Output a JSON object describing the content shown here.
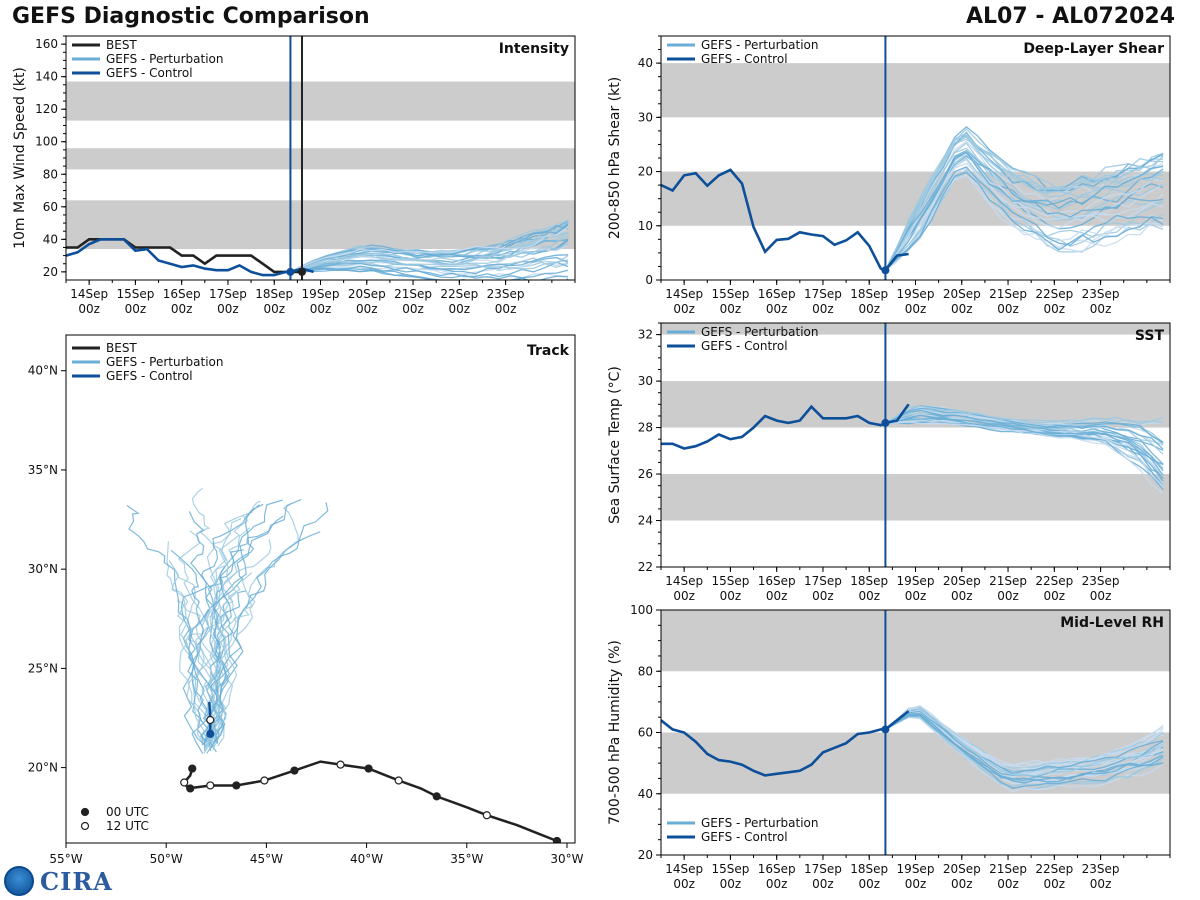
{
  "header": {
    "title": "GEFS Diagnostic Comparison",
    "storm_id": "AL07 - AL072024"
  },
  "logos": {
    "noaa_icon": "noaa-logo-icon",
    "cira_text": "CIRA"
  },
  "colors": {
    "best": "#222222",
    "perturbation": "#6aaed6",
    "control": "#0d4f99",
    "band": "#cccccc"
  },
  "time_axis": {
    "tick_labels": [
      [
        "14Sep",
        "00z"
      ],
      [
        "15Sep",
        "00z"
      ],
      [
        "16Sep",
        "00z"
      ],
      [
        "17Sep",
        "00z"
      ],
      [
        "18Sep",
        "00z"
      ],
      [
        "19Sep",
        "00z"
      ],
      [
        "20Sep",
        "00z"
      ],
      [
        "21Sep",
        "00z"
      ],
      [
        "22Sep",
        "00z"
      ],
      [
        "23Sep",
        "00z"
      ]
    ],
    "xmin": -0.5,
    "xmax": 10.5,
    "initial_time": 4.35
  },
  "chart_data": [
    {
      "id": "intensity",
      "type": "line",
      "title": "Intensity",
      "ylabel": "10m Max Wind Speed (kt)",
      "ylim": [
        15,
        165
      ],
      "yticks": [
        20,
        40,
        60,
        80,
        100,
        120,
        140,
        160
      ],
      "bands": [
        [
          34,
          64
        ],
        [
          83,
          96
        ],
        [
          113,
          137
        ]
      ],
      "best_marker_time": 4.6,
      "legend": [
        "BEST",
        "GEFS - Perturbation",
        "GEFS - Control"
      ],
      "series": [
        {
          "name": "BEST",
          "x": [
            -0.5,
            -0.25,
            0,
            0.25,
            0.5,
            0.75,
            1,
            1.25,
            1.5,
            1.75,
            2,
            2.25,
            2.5,
            2.75,
            3,
            3.25,
            3.5,
            3.75,
            4,
            4.25,
            4.5,
            4.6
          ],
          "values": [
            35,
            35,
            40,
            40,
            40,
            40,
            35,
            35,
            35,
            35,
            30,
            30,
            25,
            30,
            30,
            30,
            30,
            25,
            20,
            20,
            20,
            20
          ]
        },
        {
          "name": "GEFS - Control",
          "x": [
            -0.5,
            -0.25,
            0,
            0.25,
            0.5,
            0.75,
            1,
            1.25,
            1.5,
            1.75,
            2,
            2.25,
            2.5,
            2.75,
            3,
            3.25,
            3.5,
            3.75,
            4,
            4.25,
            4.35,
            4.6,
            4.85
          ],
          "values": [
            30,
            32,
            37,
            40,
            40,
            40,
            33,
            34,
            27,
            25,
            23,
            24,
            22,
            21,
            21,
            24,
            20,
            18,
            18,
            20,
            20,
            22,
            20
          ]
        }
      ],
      "ensemble": {
        "name": "GEFS - Perturbation",
        "start": 4.35,
        "start_value": 20,
        "mean": [
          [
            4.35,
            20
          ],
          [
            5,
            25
          ],
          [
            6,
            28
          ],
          [
            7,
            25
          ],
          [
            8,
            23
          ],
          [
            9,
            25
          ],
          [
            10,
            30
          ],
          [
            10.5,
            33
          ]
        ],
        "spread": [
          [
            4.35,
            0
          ],
          [
            5,
            4
          ],
          [
            6,
            7
          ],
          [
            7,
            7
          ],
          [
            8,
            9
          ],
          [
            9,
            12
          ],
          [
            10,
            16
          ],
          [
            10.5,
            18
          ]
        ],
        "members": 30
      }
    },
    {
      "id": "shear",
      "type": "line",
      "title": "Deep-Layer Shear",
      "ylabel": "200-850 hPa Shear (kt)",
      "ylim": [
        0,
        45
      ],
      "yticks": [
        0,
        10,
        20,
        30,
        40
      ],
      "bands": [
        [
          10,
          20
        ],
        [
          30,
          40
        ]
      ],
      "legend": [
        "GEFS - Perturbation",
        "GEFS - Control"
      ],
      "series": [
        {
          "name": "GEFS - Control",
          "x": [
            -0.5,
            -0.25,
            0,
            0.25,
            0.5,
            0.75,
            1,
            1.25,
            1.5,
            1.75,
            2,
            2.25,
            2.5,
            2.75,
            3,
            3.25,
            3.5,
            3.75,
            4,
            4.25,
            4.35,
            4.6,
            4.85
          ],
          "values": [
            17.5,
            16.5,
            19.3,
            19.7,
            17.4,
            19.3,
            20.3,
            17.8,
            9.8,
            5.2,
            7.4,
            7.6,
            8.8,
            8.4,
            8.1,
            6.5,
            7.3,
            8.8,
            6.3,
            2.1,
            1.8,
            4.5,
            4.8
          ]
        }
      ],
      "ensemble": {
        "name": "GEFS - Perturbation",
        "start": 4.35,
        "start_value": 1.8,
        "mean": [
          [
            4.35,
            1.8
          ],
          [
            5,
            10
          ],
          [
            6,
            25
          ],
          [
            7,
            16
          ],
          [
            8,
            12
          ],
          [
            9,
            14
          ],
          [
            10,
            17
          ],
          [
            10.5,
            18
          ]
        ],
        "spread": [
          [
            4.35,
            0
          ],
          [
            5,
            4
          ],
          [
            6,
            4
          ],
          [
            7,
            5
          ],
          [
            8,
            6
          ],
          [
            9,
            7
          ],
          [
            10,
            7
          ],
          [
            10.5,
            8
          ]
        ],
        "members": 30
      }
    },
    {
      "id": "sst",
      "type": "line",
      "title": "SST",
      "ylabel": "Sea Surface Temp (°C)",
      "ylim": [
        22,
        32.5
      ],
      "yticks": [
        22,
        24,
        26,
        28,
        30,
        32
      ],
      "bands": [
        [
          24,
          26
        ],
        [
          28,
          30
        ],
        [
          32,
          34
        ]
      ],
      "legend": [
        "GEFS - Perturbation",
        "GEFS - Control"
      ],
      "series": [
        {
          "name": "GEFS - Control",
          "x": [
            -0.5,
            -0.25,
            0,
            0.25,
            0.5,
            0.75,
            1,
            1.25,
            1.5,
            1.75,
            2,
            2.25,
            2.5,
            2.75,
            3,
            3.25,
            3.5,
            3.75,
            4,
            4.25,
            4.35,
            4.6,
            4.85
          ],
          "values": [
            27.3,
            27.3,
            27.1,
            27.2,
            27.4,
            27.7,
            27.5,
            27.6,
            28,
            28.5,
            28.3,
            28.2,
            28.3,
            28.9,
            28.4,
            28.4,
            28.4,
            28.5,
            28.2,
            28.1,
            28.2,
            28.3,
            29
          ]
        }
      ],
      "ensemble": {
        "name": "GEFS - Perturbation",
        "start": 4.35,
        "start_value": 28.2,
        "mean": [
          [
            4.35,
            28.2
          ],
          [
            5,
            28.6
          ],
          [
            6,
            28.4
          ],
          [
            7,
            28.1
          ],
          [
            8,
            27.9
          ],
          [
            9,
            27.9
          ],
          [
            9.8,
            27.4
          ],
          [
            10.5,
            26.4
          ]
        ],
        "spread": [
          [
            4.35,
            0
          ],
          [
            5,
            0.4
          ],
          [
            6,
            0.3
          ],
          [
            7,
            0.3
          ],
          [
            8,
            0.3
          ],
          [
            9,
            0.5
          ],
          [
            9.8,
            0.9
          ],
          [
            10.5,
            1.6
          ]
        ],
        "members": 30
      }
    },
    {
      "id": "rh",
      "type": "line",
      "title": "Mid-Level RH",
      "ylabel": "700-500 hPa Humidity (%)",
      "ylim": [
        20,
        100
      ],
      "yticks": [
        20,
        40,
        60,
        80,
        100
      ],
      "bands": [
        [
          40,
          60
        ],
        [
          80,
          100
        ]
      ],
      "legend": [
        "GEFS - Perturbation",
        "GEFS - Control"
      ],
      "series": [
        {
          "name": "GEFS - Control",
          "x": [
            -0.5,
            -0.25,
            0,
            0.25,
            0.5,
            0.75,
            1,
            1.25,
            1.5,
            1.75,
            2,
            2.25,
            2.5,
            2.75,
            3,
            3.25,
            3.5,
            3.75,
            4,
            4.25,
            4.35,
            4.6,
            4.85
          ],
          "values": [
            64,
            61,
            60,
            57,
            53,
            51,
            50.5,
            49.5,
            47.5,
            46,
            46.5,
            47,
            47.5,
            49.5,
            53.5,
            55,
            56.5,
            59.5,
            60,
            61,
            61,
            64,
            67
          ]
        }
      ],
      "ensemble": {
        "name": "GEFS - Perturbation",
        "start": 4.35,
        "start_value": 61,
        "mean": [
          [
            4.35,
            61
          ],
          [
            5,
            68
          ],
          [
            6,
            55
          ],
          [
            7,
            45
          ],
          [
            8,
            46
          ],
          [
            9,
            48
          ],
          [
            10,
            52
          ],
          [
            10.5,
            56
          ]
        ],
        "spread": [
          [
            4.35,
            0
          ],
          [
            5,
            2
          ],
          [
            6,
            3
          ],
          [
            7,
            4
          ],
          [
            8,
            5
          ],
          [
            9,
            5
          ],
          [
            10,
            6
          ],
          [
            10.5,
            7
          ]
        ],
        "members": 30
      }
    },
    {
      "id": "track",
      "type": "scatter",
      "title": "Track",
      "xlabel_ticks": [
        "55°W",
        "50°W",
        "45°W",
        "40°W",
        "35°W",
        "30°W"
      ],
      "xtick_values": [
        -55,
        -50,
        -45,
        -40,
        -35,
        -30
      ],
      "ylabel_ticks": [
        "20°N",
        "25°N",
        "30°N",
        "35°N",
        "40°N"
      ],
      "ytick_values": [
        20,
        25,
        30,
        35,
        40
      ],
      "xlim": [
        -55,
        -29.6
      ],
      "ylim": [
        16.2,
        41.8
      ],
      "legend": [
        "BEST",
        "GEFS - Perturbation",
        "GEFS - Control"
      ],
      "marker_legend": [
        "00 UTC",
        "12 UTC"
      ],
      "best_track": {
        "lon": [
          -30.5,
          -31.5,
          -32.5,
          -34,
          -35,
          -36.5,
          -37.3,
          -38.4,
          -39.9,
          -41.3,
          -42.3,
          -43.6,
          -45.1,
          -46.5,
          -47.8,
          -48.9,
          -49.1,
          -48.8,
          -48.7
        ],
        "lat": [
          16.3,
          16.7,
          17.1,
          17.6,
          18.0,
          18.55,
          18.95,
          19.35,
          19.95,
          20.15,
          20.3,
          19.85,
          19.35,
          19.1,
          19.1,
          18.95,
          19.25,
          19.6,
          19.95
        ],
        "markers": [
          [
            "00",
            -30.5,
            16.3
          ],
          [
            "12",
            -34,
            17.6
          ],
          [
            "00",
            -36.5,
            18.55
          ],
          [
            "12",
            -38.4,
            19.35
          ],
          [
            "00",
            -39.9,
            19.95
          ],
          [
            "12",
            -41.3,
            20.15
          ],
          [
            "00",
            -43.6,
            19.85
          ],
          [
            "12",
            -45.1,
            19.35
          ],
          [
            "00",
            -46.5,
            19.1
          ],
          [
            "12",
            -47.8,
            19.1
          ],
          [
            "00",
            -48.8,
            18.95
          ],
          [
            "12",
            -49.1,
            19.25
          ],
          [
            "00",
            -48.7,
            19.95
          ]
        ]
      },
      "control_track": {
        "lon": [
          -47.8,
          -47.8,
          -47.85
        ],
        "lat": [
          21.7,
          22.5,
          23.3
        ],
        "markers": [
          [
            "00",
            -47.8,
            21.7
          ],
          [
            "12",
            -47.8,
            22.4
          ]
        ]
      },
      "ensemble_origin": {
        "lon": -47.8,
        "lat": 21.7
      },
      "ensemble_members": 30
    }
  ]
}
